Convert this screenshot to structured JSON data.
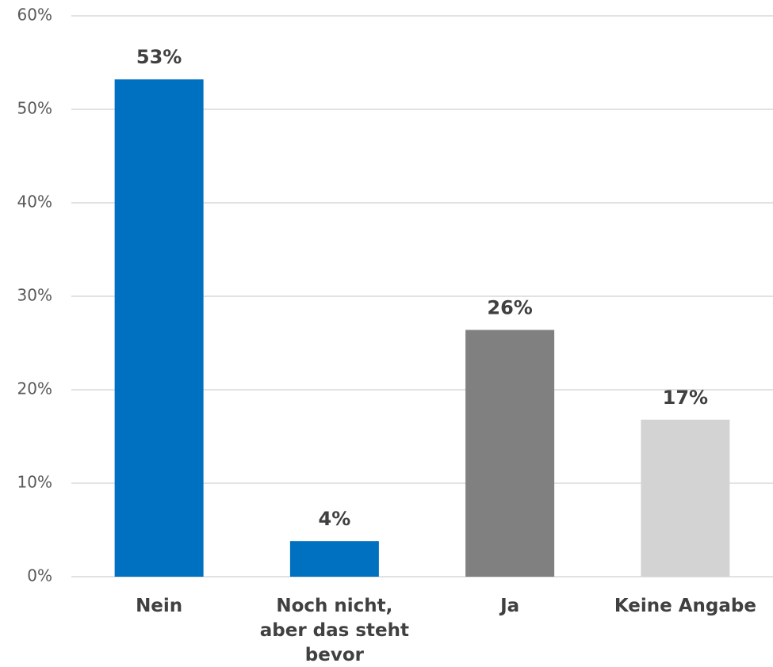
{
  "chart_data": {
    "type": "bar",
    "categories": [
      "Nein",
      "Noch nicht, aber das steht bevor",
      "Ja",
      "Keine Angabe"
    ],
    "values": [
      53.2,
      3.8,
      26.4,
      16.8
    ],
    "value_labels": [
      "53%",
      "4%",
      "26%",
      "17%"
    ],
    "colors": [
      "#0070c0",
      "#0070c0",
      "#808080",
      "#d3d3d3"
    ],
    "ylim": [
      0,
      60
    ],
    "yticks": [
      {
        "value": 0,
        "label": "0%"
      },
      {
        "value": 10,
        "label": "10%"
      },
      {
        "value": 20,
        "label": "20%"
      },
      {
        "value": 30,
        "label": "30%"
      },
      {
        "value": 40,
        "label": "40%"
      },
      {
        "value": 50,
        "label": "50%"
      },
      {
        "value": 60,
        "label": "60%"
      }
    ],
    "grid": true
  }
}
